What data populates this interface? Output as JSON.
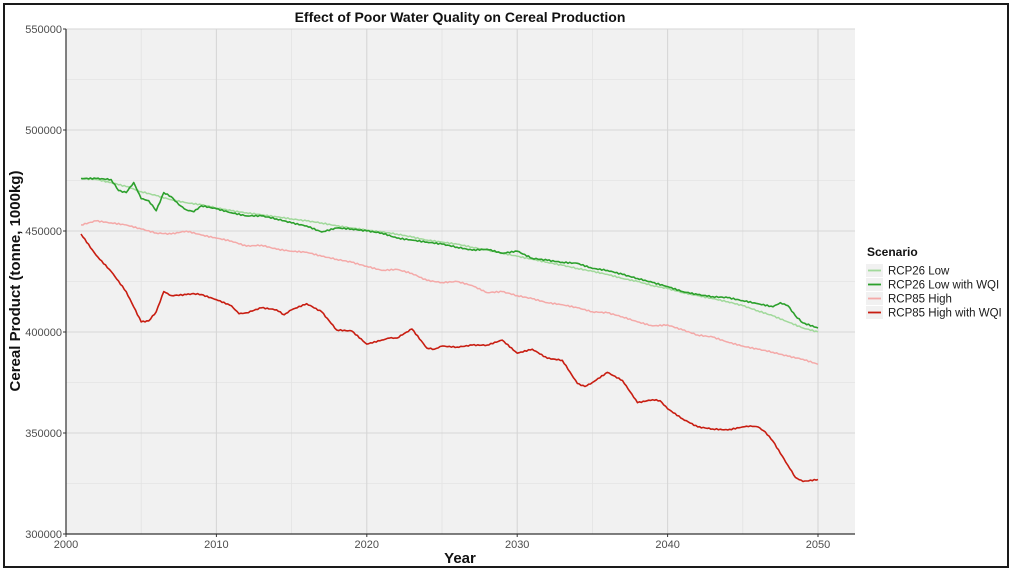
{
  "chart_data": {
    "type": "line",
    "title": "Effect of Poor Water Quality on Cereal Production",
    "xlabel": "Year",
    "ylabel": "Cereal Product (tonne, 1000kg)",
    "xlim": [
      2000,
      2052.5
    ],
    "ylim": [
      300000,
      550000
    ],
    "x_ticks": [
      2000,
      2010,
      2020,
      2030,
      2040,
      2050
    ],
    "x_tick_labels": [
      "2000",
      "2010",
      "2020",
      "2030",
      "2040",
      "2050"
    ],
    "y_ticks": [
      300000,
      350000,
      400000,
      450000,
      500000,
      550000
    ],
    "y_tick_labels": [
      "300000",
      "350000",
      "400000",
      "450000",
      "500000",
      "550000"
    ],
    "grid": true,
    "legend": {
      "title": "Scenario",
      "position": "right"
    },
    "series": [
      {
        "name": "RCP26 Low",
        "color": "#a1d99b",
        "x": [
          2001,
          2002,
          2003,
          2004,
          2005,
          2006,
          2007,
          2008,
          2009,
          2010,
          2011,
          2012,
          2013,
          2014,
          2015,
          2016,
          2017,
          2018,
          2019,
          2020,
          2021,
          2022,
          2023,
          2024,
          2025,
          2026,
          2027,
          2028,
          2029,
          2030,
          2031,
          2032,
          2033,
          2034,
          2035,
          2036,
          2037,
          2038,
          2039,
          2040,
          2041,
          2042,
          2043,
          2044,
          2045,
          2046,
          2047,
          2048,
          2049,
          2050
        ],
        "values": [
          476000,
          475500,
          474000,
          472000,
          469500,
          467500,
          465500,
          464000,
          463000,
          461500,
          460000,
          459000,
          458000,
          457000,
          456000,
          455000,
          454000,
          452500,
          451500,
          450500,
          449500,
          448500,
          447000,
          445500,
          444500,
          443500,
          442000,
          440500,
          439000,
          437500,
          436000,
          434500,
          433000,
          431500,
          430000,
          428500,
          426500,
          425000,
          423000,
          421500,
          419500,
          418000,
          416500,
          415000,
          413000,
          410500,
          408000,
          405000,
          402000,
          400000
        ]
      },
      {
        "name": "RCP26 Low with WQI",
        "color": "#2ca02c",
        "x": [
          2001,
          2002,
          2003,
          2003.5,
          2004,
          2004.5,
          2005,
          2005.5,
          2006,
          2006.5,
          2007,
          2007.5,
          2008,
          2008.5,
          2009,
          2010,
          2011,
          2012,
          2013,
          2014,
          2015,
          2016,
          2017,
          2018,
          2019,
          2020,
          2021,
          2022,
          2023,
          2024,
          2025,
          2026,
          2027,
          2028,
          2029,
          2030,
          2031,
          2032,
          2033,
          2034,
          2035,
          2036,
          2037,
          2038,
          2039,
          2040,
          2041,
          2042,
          2043,
          2044,
          2045,
          2046,
          2047,
          2047.5,
          2048,
          2048.5,
          2049,
          2050
        ],
        "values": [
          476000,
          476000,
          475500,
          470000,
          469000,
          474000,
          466000,
          465000,
          460000,
          469000,
          467000,
          463000,
          460500,
          459500,
          462500,
          461000,
          459000,
          457500,
          457500,
          456000,
          454000,
          452500,
          449500,
          451500,
          451000,
          450000,
          449000,
          446500,
          445500,
          444500,
          443500,
          442000,
          440500,
          441000,
          439000,
          440000,
          436500,
          435500,
          434500,
          434000,
          431500,
          430500,
          428500,
          426500,
          424500,
          422500,
          420000,
          418500,
          417500,
          417000,
          415500,
          414000,
          412500,
          414500,
          413000,
          408000,
          404500,
          402000
        ]
      },
      {
        "name": "RCP85 High",
        "color": "#f4a9a8",
        "x": [
          2001,
          2002,
          2003,
          2004,
          2005,
          2006,
          2007,
          2008,
          2009,
          2010,
          2011,
          2012,
          2013,
          2014,
          2015,
          2016,
          2017,
          2018,
          2019,
          2020,
          2021,
          2022,
          2023,
          2024,
          2025,
          2026,
          2027,
          2028,
          2029,
          2030,
          2031,
          2032,
          2033,
          2034,
          2035,
          2036,
          2037,
          2038,
          2039,
          2040,
          2041,
          2042,
          2043,
          2044,
          2045,
          2046,
          2047,
          2048,
          2049,
          2050
        ],
        "values": [
          453000,
          455000,
          454000,
          453000,
          451000,
          449000,
          448500,
          450000,
          448000,
          446500,
          445000,
          442500,
          443000,
          441000,
          440000,
          439500,
          437500,
          436000,
          434500,
          432500,
          430500,
          431000,
          429000,
          425500,
          424500,
          425000,
          423000,
          419500,
          420000,
          418000,
          416500,
          414500,
          413500,
          412000,
          410000,
          409500,
          407500,
          405000,
          403000,
          403500,
          401000,
          398500,
          397500,
          395000,
          393000,
          391500,
          390000,
          388000,
          386500,
          384000
        ]
      },
      {
        "name": "RCP85 High with WQI",
        "color": "#c81d11",
        "x": [
          2001,
          2002,
          2003,
          2004,
          2005,
          2005.5,
          2006,
          2006.5,
          2007,
          2008,
          2008.5,
          2009,
          2010,
          2011,
          2011.5,
          2012,
          2013,
          2014,
          2014.5,
          2015,
          2016,
          2017,
          2018,
          2019,
          2020,
          2021,
          2021.5,
          2022,
          2023,
          2024,
          2024.5,
          2025,
          2026,
          2027,
          2028,
          2029,
          2030,
          2031,
          2032,
          2033,
          2034,
          2034.5,
          2035,
          2036,
          2037,
          2038,
          2039,
          2039.5,
          2040,
          2041,
          2042,
          2043,
          2044,
          2045,
          2045.5,
          2046,
          2046.5,
          2047,
          2048,
          2048.5,
          2049,
          2050
        ],
        "values": [
          448500,
          438000,
          430000,
          420000,
          405000,
          405500,
          410000,
          420000,
          418000,
          418500,
          419000,
          418500,
          416000,
          413000,
          409000,
          409500,
          412000,
          411000,
          408500,
          411000,
          414000,
          410000,
          401000,
          400500,
          394000,
          396000,
          397000,
          397000,
          401500,
          392000,
          391500,
          393000,
          392500,
          393500,
          393500,
          396000,
          389500,
          391500,
          387000,
          386000,
          374500,
          373000,
          375000,
          380000,
          376000,
          365000,
          366500,
          366000,
          362000,
          357000,
          353000,
          352000,
          351500,
          353000,
          353500,
          353000,
          350500,
          346000,
          334000,
          328000,
          326000,
          327000
        ]
      }
    ]
  }
}
